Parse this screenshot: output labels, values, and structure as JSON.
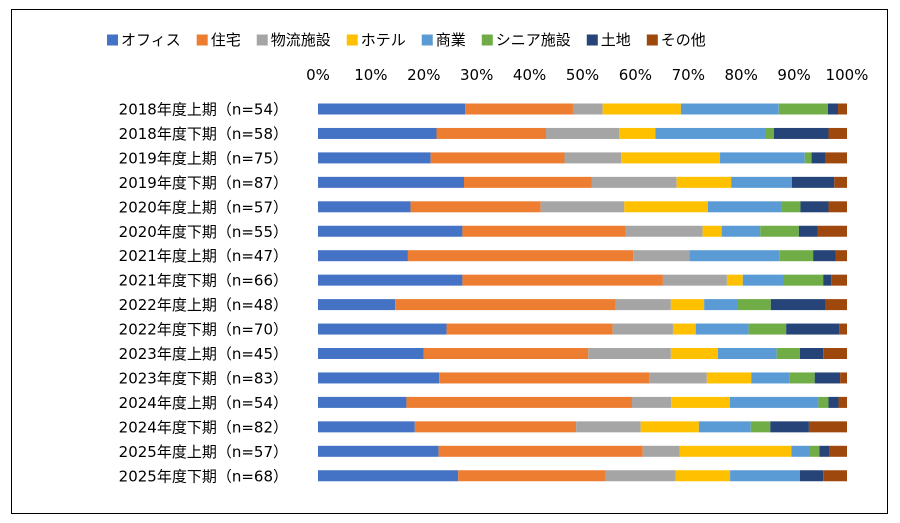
{
  "chart_data": {
    "type": "bar",
    "orientation": "horizontal",
    "stacked": "percent",
    "xlim": [
      0,
      100
    ],
    "xticks": [
      "0%",
      "10%",
      "20%",
      "30%",
      "40%",
      "50%",
      "60%",
      "70%",
      "80%",
      "90%",
      "100%"
    ],
    "legend_position": "top",
    "grid": false,
    "categories": [
      "2018年度上期（n=54）",
      "2018年度下期（n=58）",
      "2019年度上期（n=75）",
      "2019年度下期（n=87）",
      "2020年度上期（n=57）",
      "2020年度下期（n=55）",
      "2021年度上期（n=47）",
      "2021年度下期（n=66）",
      "2022年度上期（n=48）",
      "2022年度下期（n=70）",
      "2023年度上期（n=45）",
      "2023年度下期（n=83）",
      "2024年度上期（n=54）",
      "2024年度下期（n=82）",
      "2025年度上期（n=57）",
      "2025年度下期（n=68）"
    ],
    "series": [
      {
        "name": "オフィス",
        "color": "#4472C4",
        "values": [
          27.8,
          22.4,
          21.3,
          27.6,
          17.5,
          27.3,
          17.0,
          27.3,
          14.6,
          24.3,
          20.0,
          22.9,
          16.7,
          18.3,
          22.8,
          26.5
        ]
      },
      {
        "name": "住宅",
        "color": "#ED7D31",
        "values": [
          20.4,
          20.7,
          25.3,
          24.1,
          24.6,
          30.9,
          42.6,
          37.9,
          41.7,
          31.4,
          31.1,
          39.8,
          42.6,
          30.5,
          38.6,
          27.9
        ]
      },
      {
        "name": "物流施設",
        "color": "#A5A5A5",
        "values": [
          5.6,
          13.8,
          10.7,
          16.1,
          15.8,
          14.5,
          10.6,
          12.1,
          10.4,
          11.4,
          15.6,
          10.8,
          7.4,
          12.2,
          7.0,
          13.2
        ]
      },
      {
        "name": "ホテル",
        "color": "#FFC000",
        "values": [
          14.8,
          6.9,
          18.7,
          10.3,
          15.8,
          3.6,
          0.0,
          3.0,
          6.3,
          4.3,
          8.9,
          8.4,
          11.1,
          11.0,
          21.1,
          10.3
        ]
      },
      {
        "name": "商業",
        "color": "#5B9BD5",
        "values": [
          18.5,
          20.7,
          16.0,
          11.5,
          14.0,
          7.3,
          17.0,
          7.6,
          6.3,
          10.0,
          11.1,
          7.2,
          16.7,
          9.8,
          3.5,
          13.2
        ]
      },
      {
        "name": "シニア施設",
        "color": "#70AD47",
        "values": [
          9.3,
          1.7,
          1.3,
          0.0,
          3.5,
          7.3,
          6.4,
          7.6,
          6.3,
          7.1,
          4.4,
          4.8,
          1.9,
          3.7,
          1.8,
          0.0
        ]
      },
      {
        "name": "土地",
        "color": "#264478",
        "values": [
          1.9,
          10.3,
          2.7,
          8.0,
          5.3,
          3.6,
          4.3,
          1.5,
          10.4,
          10.0,
          4.4,
          4.8,
          1.9,
          7.3,
          1.8,
          4.4
        ]
      },
      {
        "name": "その他",
        "color": "#9E480E",
        "values": [
          1.7,
          3.5,
          4.0,
          2.4,
          3.5,
          5.5,
          2.1,
          3.0,
          4.0,
          1.5,
          4.5,
          1.3,
          1.6,
          7.2,
          3.4,
          4.5
        ]
      }
    ]
  }
}
